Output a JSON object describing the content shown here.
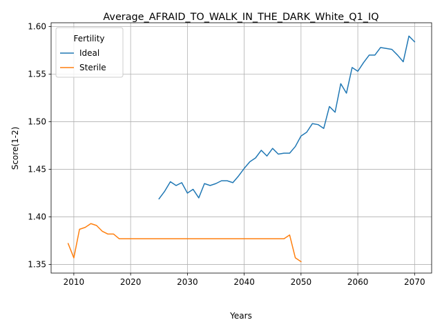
{
  "chart_data": {
    "type": "line",
    "title": "Average_AFRAID_TO_WALK_IN_THE_DARK_White_Q1_IQ",
    "xlabel": "Years",
    "ylabel": "Score(1-2)",
    "xlim": [
      2006,
      2073
    ],
    "ylim": [
      1.341,
      1.604
    ],
    "xticks": [
      2010,
      2020,
      2030,
      2040,
      2050,
      2060,
      2070
    ],
    "yticks": [
      1.35,
      1.4,
      1.45,
      1.5,
      1.55,
      1.6
    ],
    "ytick_labels": [
      "1.35",
      "1.40",
      "1.45",
      "1.50",
      "1.55",
      "1.60"
    ],
    "grid": true,
    "legend": {
      "title": "Fertility",
      "placement": "top-left"
    },
    "series": [
      {
        "name": "Ideal",
        "color": "#1f77b4",
        "x": [
          2025,
          2026,
          2027,
          2028,
          2029,
          2030,
          2031,
          2032,
          2033,
          2034,
          2035,
          2036,
          2037,
          2038,
          2039,
          2040,
          2041,
          2042,
          2043,
          2044,
          2045,
          2046,
          2047,
          2048,
          2049,
          2050,
          2051,
          2052,
          2053,
          2054,
          2055,
          2056,
          2057,
          2058,
          2059,
          2060,
          2061,
          2062,
          2063,
          2064,
          2065,
          2066,
          2067,
          2068,
          2069,
          2070
        ],
        "y": [
          1.419,
          1.427,
          1.437,
          1.433,
          1.436,
          1.425,
          1.429,
          1.42,
          1.435,
          1.433,
          1.435,
          1.438,
          1.438,
          1.436,
          1.443,
          1.451,
          1.458,
          1.462,
          1.47,
          1.464,
          1.472,
          1.466,
          1.467,
          1.467,
          1.474,
          1.485,
          1.489,
          1.498,
          1.497,
          1.493,
          1.516,
          1.51,
          1.54,
          1.53,
          1.557,
          1.553,
          1.562,
          1.57,
          1.57,
          1.578,
          1.577,
          1.576,
          1.57,
          1.563,
          1.59,
          1.584
        ]
      },
      {
        "name": "Sterile",
        "color": "#ff7f0e",
        "x": [
          2009,
          2010,
          2011,
          2012,
          2013,
          2014,
          2015,
          2016,
          2017,
          2018,
          2019,
          2020,
          2021,
          2022,
          2023,
          2024,
          2025,
          2026,
          2027,
          2028,
          2029,
          2030,
          2031,
          2032,
          2033,
          2034,
          2035,
          2036,
          2037,
          2038,
          2039,
          2040,
          2041,
          2042,
          2043,
          2044,
          2045,
          2046,
          2047,
          2048,
          2049,
          2050
        ],
        "y": [
          1.372,
          1.357,
          1.387,
          1.389,
          1.393,
          1.391,
          1.385,
          1.382,
          1.382,
          1.377,
          1.377,
          1.377,
          1.377,
          1.377,
          1.377,
          1.377,
          1.377,
          1.377,
          1.377,
          1.377,
          1.377,
          1.377,
          1.377,
          1.377,
          1.377,
          1.377,
          1.377,
          1.377,
          1.377,
          1.377,
          1.377,
          1.377,
          1.377,
          1.377,
          1.377,
          1.377,
          1.377,
          1.377,
          1.377,
          1.381,
          1.357,
          1.353
        ]
      }
    ]
  }
}
